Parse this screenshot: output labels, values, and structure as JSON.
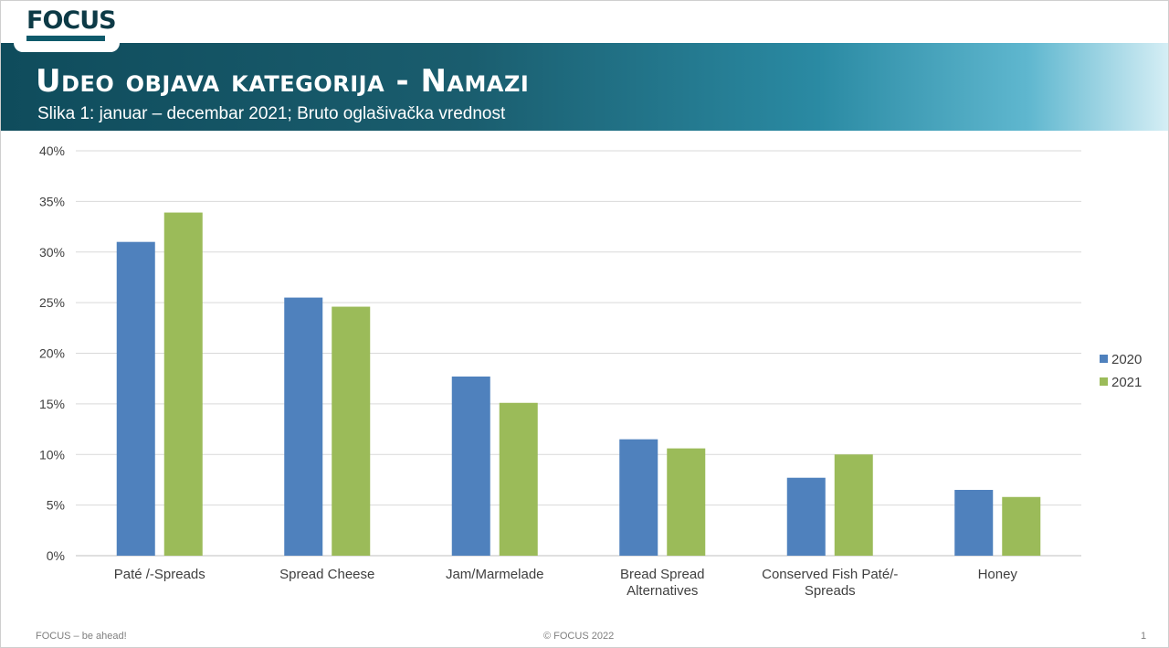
{
  "logo": {
    "text": "FOCUS"
  },
  "header": {
    "title": "Udeo objava kategorija - Namazi",
    "subtitle": "Slika 1: januar – decembar 2021; Bruto oglašivačka vrednost"
  },
  "footer": {
    "left": "FOCUS – be ahead!",
    "center": "© FOCUS 2022",
    "right": "1"
  },
  "colors": {
    "s2020": "#4f81bd",
    "s2021": "#9bbb59",
    "grid": "#d9d9d9",
    "axis_text": "#404040"
  },
  "chart_data": {
    "type": "bar",
    "title": "",
    "xlabel": "",
    "ylabel": "",
    "categories": [
      [
        "Paté /-Spreads"
      ],
      [
        "Spread Cheese"
      ],
      [
        "Jam/Marmelade"
      ],
      [
        "Bread Spread",
        "Alternatives"
      ],
      [
        "Conserved Fish Paté/-",
        "Spreads"
      ],
      [
        "Honey"
      ]
    ],
    "series": [
      {
        "name": "2020",
        "values": [
          31.0,
          25.5,
          17.7,
          11.5,
          7.7,
          6.5
        ]
      },
      {
        "name": "2021",
        "values": [
          33.9,
          24.6,
          15.1,
          10.6,
          10.0,
          5.8
        ]
      }
    ],
    "ylim": [
      0,
      40
    ],
    "yticks": [
      "0%",
      "5%",
      "10%",
      "15%",
      "20%",
      "25%",
      "30%",
      "35%",
      "40%"
    ],
    "grid": true,
    "legend": "right"
  }
}
